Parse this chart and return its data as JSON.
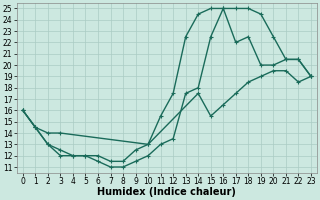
{
  "title": "",
  "xlabel": "Humidex (Indice chaleur)",
  "xlim": [
    -0.5,
    23.5
  ],
  "ylim": [
    10.5,
    25.5
  ],
  "xticks": [
    0,
    1,
    2,
    3,
    4,
    5,
    6,
    7,
    8,
    9,
    10,
    11,
    12,
    13,
    14,
    15,
    16,
    17,
    18,
    19,
    20,
    21,
    22,
    23
  ],
  "yticks": [
    11,
    12,
    13,
    14,
    15,
    16,
    17,
    18,
    19,
    20,
    21,
    22,
    23,
    24,
    25
  ],
  "line_color": "#1a6b5a",
  "bg_color": "#cce8e0",
  "grid_color": "#aaccc4",
  "curve1_x": [
    0,
    1,
    2,
    3,
    4,
    5,
    6,
    7,
    8,
    9,
    10,
    11,
    12,
    13,
    14,
    15,
    16,
    17,
    18,
    19,
    20,
    21,
    22,
    23
  ],
  "curve1_y": [
    16.0,
    14.5,
    13.0,
    12.0,
    12.0,
    12.0,
    11.5,
    11.0,
    11.0,
    11.5,
    12.0,
    13.0,
    13.5,
    17.5,
    18.0,
    22.5,
    25.0,
    25.0,
    25.0,
    24.5,
    22.5,
    20.5,
    20.5,
    19.0
  ],
  "curve2_x": [
    0,
    1,
    2,
    3,
    4,
    5,
    6,
    7,
    8,
    9,
    10,
    11,
    12,
    13,
    14,
    15,
    16,
    17,
    18,
    19,
    20,
    21,
    22,
    23
  ],
  "curve2_y": [
    16.0,
    14.5,
    13.0,
    12.5,
    12.0,
    12.0,
    12.0,
    11.5,
    11.5,
    12.5,
    13.0,
    15.5,
    17.5,
    22.5,
    24.5,
    25.0,
    25.0,
    22.0,
    22.5,
    20.0,
    20.0,
    20.5,
    20.5,
    19.0
  ],
  "curve3_x": [
    0,
    1,
    2,
    3,
    10,
    14,
    15,
    16,
    17,
    18,
    19,
    20,
    21,
    22,
    23
  ],
  "curve3_y": [
    16.0,
    14.5,
    14.0,
    14.0,
    13.0,
    17.5,
    15.5,
    16.5,
    17.5,
    18.5,
    19.0,
    19.5,
    19.5,
    18.5,
    19.0
  ],
  "marker": "+",
  "markersize": 3,
  "linewidth": 1.0,
  "tick_fontsize": 5.5,
  "label_fontsize": 7
}
